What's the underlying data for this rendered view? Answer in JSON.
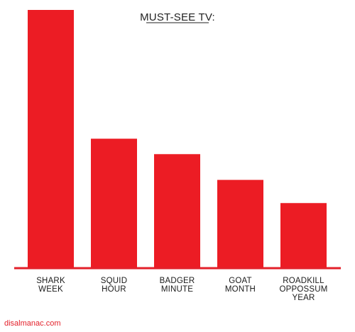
{
  "chart_data": {
    "type": "bar",
    "title": "MUST-SEE TV:",
    "categories": [
      "SHARK WEEK",
      "SQUID HOUR",
      "BADGER MINUTE",
      "GOAT MONTH",
      "ROADKILL OPPOSSUM YEAR"
    ],
    "category_lines": [
      [
        "SHARK",
        "WEEK"
      ],
      [
        "SQUID",
        "HOUR"
      ],
      [
        "BADGER",
        "MINUTE"
      ],
      [
        "GOAT",
        "MONTH"
      ],
      [
        "ROADKILL",
        "OPPOSSUM",
        "YEAR"
      ]
    ],
    "values": [
      100,
      50,
      44,
      34,
      25
    ],
    "ylim": [
      0,
      100
    ],
    "xlabel": "",
    "ylabel": "",
    "grid": false,
    "legend": "none",
    "bar_color": "#ec1c24",
    "axis_color": "#e3202a"
  },
  "footer": {
    "source": "disalmanac.com"
  }
}
